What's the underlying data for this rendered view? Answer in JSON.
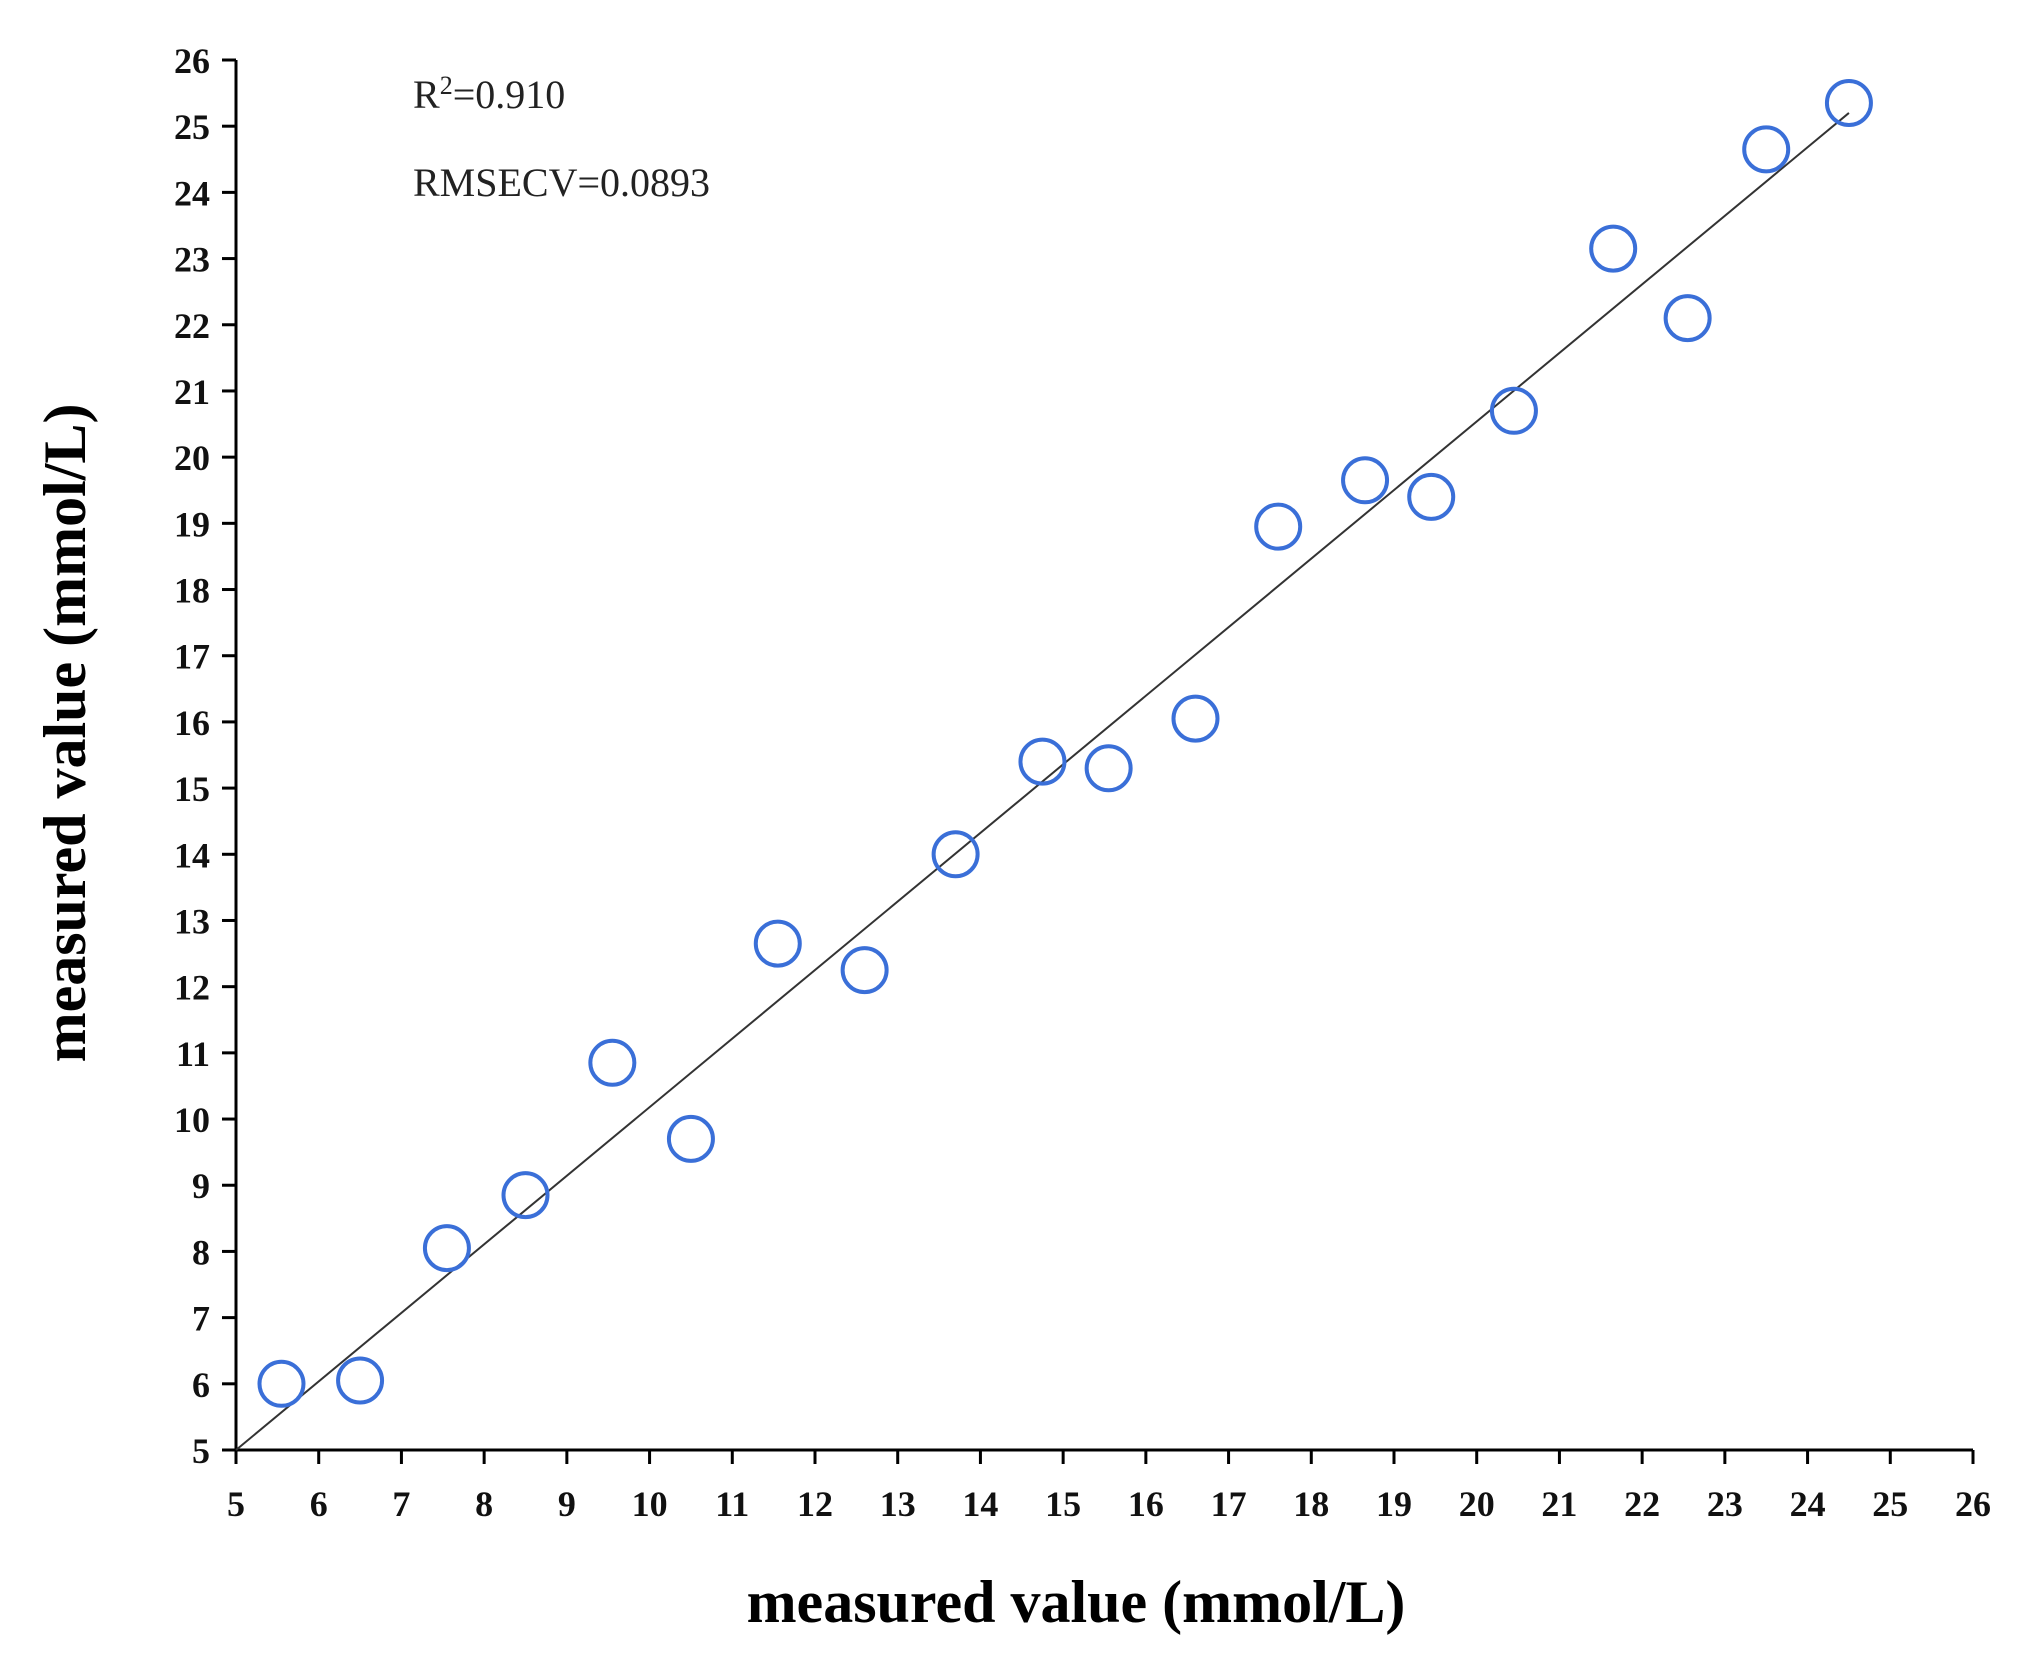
{
  "chart_data": {
    "type": "scatter",
    "title": "",
    "xlabel": "measured value (mmol/L)",
    "ylabel": "measured value (mmol/L)",
    "xlim": [
      5,
      26
    ],
    "ylim": [
      5,
      26
    ],
    "xticks": [
      5,
      6,
      7,
      8,
      9,
      10,
      11,
      12,
      13,
      14,
      15,
      16,
      17,
      18,
      19,
      20,
      21,
      22,
      23,
      24,
      25,
      26
    ],
    "yticks": [
      5,
      6,
      7,
      8,
      9,
      10,
      11,
      12,
      13,
      14,
      15,
      16,
      17,
      18,
      19,
      20,
      21,
      22,
      23,
      24,
      25,
      26
    ],
    "annotations": {
      "r2_prefix": "R",
      "r2_sup": "2",
      "r2_value": "=0.910",
      "rmsecv": "RMSECV=0.0893"
    },
    "points": [
      {
        "x": 5.55,
        "y": 6.0
      },
      {
        "x": 6.5,
        "y": 6.05
      },
      {
        "x": 7.55,
        "y": 8.05
      },
      {
        "x": 8.5,
        "y": 8.85
      },
      {
        "x": 9.55,
        "y": 10.85
      },
      {
        "x": 10.5,
        "y": 9.7
      },
      {
        "x": 11.55,
        "y": 12.65
      },
      {
        "x": 12.6,
        "y": 12.25
      },
      {
        "x": 13.7,
        "y": 14.0
      },
      {
        "x": 14.75,
        "y": 15.4
      },
      {
        "x": 15.55,
        "y": 15.3
      },
      {
        "x": 16.6,
        "y": 16.05
      },
      {
        "x": 17.6,
        "y": 18.95
      },
      {
        "x": 18.65,
        "y": 19.65
      },
      {
        "x": 19.45,
        "y": 19.4
      },
      {
        "x": 20.45,
        "y": 20.7
      },
      {
        "x": 21.65,
        "y": 23.15
      },
      {
        "x": 22.55,
        "y": 22.1
      },
      {
        "x": 23.5,
        "y": 24.65
      },
      {
        "x": 24.5,
        "y": 25.35
      }
    ],
    "fit_line": {
      "x": [
        5,
        24.5
      ],
      "y": [
        5,
        25.2
      ]
    },
    "marker": "hollow-circle",
    "marker_color": "#3a6fd8",
    "line_color": "#333333",
    "grid": false,
    "legend": "none"
  }
}
